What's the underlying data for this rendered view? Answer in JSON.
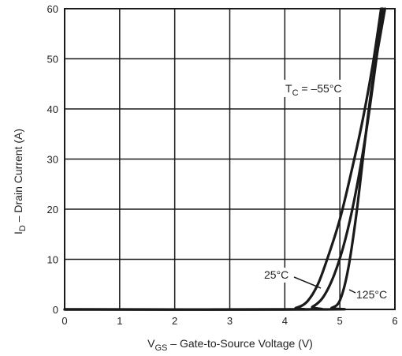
{
  "chart_data": {
    "type": "line",
    "xlabel_main": "V",
    "xlabel_sub": "GS",
    "xlabel_rest": " – Gate-to-Source Voltage (V)",
    "ylabel_main": "I",
    "ylabel_sub": "D",
    "ylabel_rest": " – Drain Current (A)",
    "xlim": [
      0,
      6
    ],
    "ylim": [
      0,
      60
    ],
    "x_ticks": [
      0,
      1,
      2,
      3,
      4,
      5,
      6
    ],
    "y_ticks": [
      0,
      10,
      20,
      30,
      40,
      50,
      60
    ],
    "grid": true,
    "series": [
      {
        "name": "TC = –55°C",
        "points": [
          [
            0,
            0
          ],
          [
            4.0,
            0
          ],
          [
            4.2,
            0.3
          ],
          [
            4.4,
            1.5
          ],
          [
            4.6,
            5
          ],
          [
            4.8,
            11
          ],
          [
            5.0,
            18
          ],
          [
            5.2,
            27
          ],
          [
            5.4,
            37
          ],
          [
            5.6,
            49
          ],
          [
            5.75,
            60
          ]
        ]
      },
      {
        "name": "25°C",
        "points": [
          [
            0,
            0
          ],
          [
            4.3,
            0
          ],
          [
            4.5,
            0.5
          ],
          [
            4.7,
            2.5
          ],
          [
            4.9,
            7
          ],
          [
            5.1,
            14
          ],
          [
            5.3,
            24
          ],
          [
            5.5,
            37
          ],
          [
            5.7,
            53
          ],
          [
            5.78,
            60
          ]
        ]
      },
      {
        "name": "125°C",
        "points": [
          [
            0,
            0
          ],
          [
            4.7,
            0
          ],
          [
            4.85,
            0.3
          ],
          [
            5.0,
            1.8
          ],
          [
            5.15,
            8
          ],
          [
            5.3,
            19
          ],
          [
            5.45,
            33
          ],
          [
            5.6,
            46
          ],
          [
            5.82,
            60
          ]
        ]
      }
    ],
    "annotations": {
      "tc_main": "T",
      "tc_sub": "C",
      "tc_rest": " = –55°C",
      "t25": "25°C",
      "t125": "125°C"
    }
  }
}
